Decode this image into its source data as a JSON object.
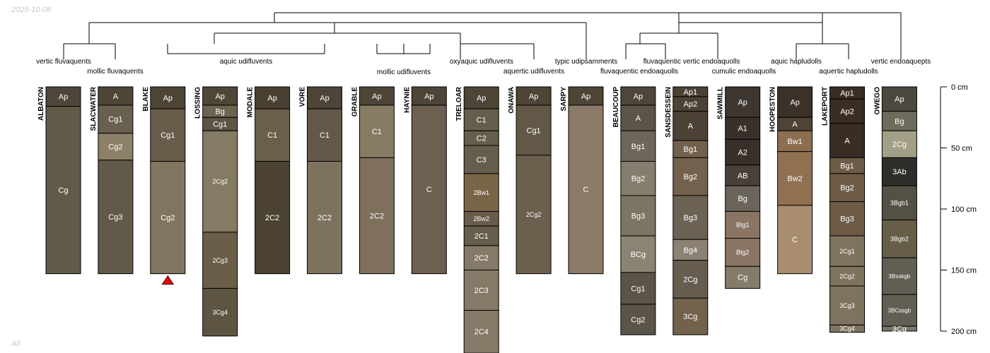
{
  "date": "2025-10-08",
  "footer_note": "All",
  "colors": {
    "horizon_stroke": "#000000",
    "tree_stroke": "#000000",
    "marker_fill": "#ee0000"
  },
  "depth_axis": {
    "unit": "cm",
    "ticks": [
      {
        "depth": 0,
        "label": "0 cm"
      },
      {
        "depth": 50,
        "label": "50 cm"
      },
      {
        "depth": 100,
        "label": "100 cm"
      },
      {
        "depth": 150,
        "label": "150 cm"
      },
      {
        "depth": 200,
        "label": "200 cm"
      }
    ]
  },
  "marker": {
    "profile": "BLAKE",
    "shape": "red-triangle"
  },
  "taxa_labels": [
    {
      "id": "vertic-fluvaquents",
      "text": "vertic fluvaquents"
    },
    {
      "id": "mollic-fluvaquents",
      "text": "mollic fluvaquents"
    },
    {
      "id": "aquic-udifluvents",
      "text": "aquic udifluvents"
    },
    {
      "id": "mollic-udifluvents",
      "text": "mollic udifluvents"
    },
    {
      "id": "oxyaquic-udifluvents",
      "text": "oxyaquic udifluvents"
    },
    {
      "id": "aquertic-udifluvents",
      "text": "aquertic udifluvents"
    },
    {
      "id": "typic-udipsamments",
      "text": "typic udipsamments"
    },
    {
      "id": "fluvaquentic-vertic-endoaquolls",
      "text": "fluvaquentic vertic endoaquolls"
    },
    {
      "id": "fluvaquentic-endoaquolls",
      "text": "fluvaquentic endoaquolls"
    },
    {
      "id": "cumulic-endoaquolls",
      "text": "cumulic endoaquolls"
    },
    {
      "id": "aquic-hapludolls",
      "text": "aquic hapludolls"
    },
    {
      "id": "aquertic-hapludolls",
      "text": "aquertic hapludolls"
    },
    {
      "id": "vertic-endoaquepts",
      "text": "vertic endoaquepts"
    }
  ],
  "profiles": [
    {
      "name": "ALBATON",
      "horizons": [
        {
          "name": "Ap",
          "top": 0,
          "bottom": 16,
          "color": "#4e4638"
        },
        {
          "name": "Cg",
          "top": 16,
          "bottom": 153,
          "color": "#625a48"
        }
      ]
    },
    {
      "name": "SLACWATER",
      "horizons": [
        {
          "name": "A",
          "top": 0,
          "bottom": 15,
          "color": "#4e4536"
        },
        {
          "name": "Cg1",
          "top": 15,
          "bottom": 38,
          "color": "#6a604f"
        },
        {
          "name": "Cg2",
          "top": 38,
          "bottom": 60,
          "color": "#8c8068"
        },
        {
          "name": "Cg3",
          "top": 60,
          "bottom": 153,
          "color": "#625a48"
        }
      ]
    },
    {
      "name": "BLAKE",
      "horizons": [
        {
          "name": "Ap",
          "top": 0,
          "bottom": 18,
          "color": "#4e4435"
        },
        {
          "name": "Cg1",
          "top": 18,
          "bottom": 61,
          "color": "#6a5c4b"
        },
        {
          "name": "Cg2",
          "top": 61,
          "bottom": 153,
          "color": "#827560"
        }
      ]
    },
    {
      "name": "LOSSING",
      "horizons": [
        {
          "name": "Ap",
          "top": 0,
          "bottom": 15,
          "color": "#4e4637"
        },
        {
          "name": "Bg",
          "top": 15,
          "bottom": 25,
          "color": "#6c6350"
        },
        {
          "name": "Cg1",
          "top": 25,
          "bottom": 36,
          "color": "#5c5444"
        },
        {
          "name": "2Cg2",
          "top": 36,
          "bottom": 119,
          "color": "#857a63"
        },
        {
          "name": "2Cg3",
          "top": 119,
          "bottom": 165,
          "color": "#6a5e49"
        },
        {
          "name": "3Cg4",
          "top": 165,
          "bottom": 204,
          "color": "#5e5442"
        }
      ]
    },
    {
      "name": "MODALE",
      "horizons": [
        {
          "name": "Ap",
          "top": 0,
          "bottom": 18,
          "color": "#4a4032"
        },
        {
          "name": "C1",
          "top": 18,
          "bottom": 61,
          "color": "#6c5e4c"
        },
        {
          "name": "2C2",
          "top": 61,
          "bottom": 153,
          "color": "#4c4232"
        }
      ]
    },
    {
      "name": "VORE",
      "horizons": [
        {
          "name": "Ap",
          "top": 0,
          "bottom": 18,
          "color": "#4c4436"
        },
        {
          "name": "C1",
          "top": 18,
          "bottom": 61,
          "color": "#645848"
        },
        {
          "name": "2C2",
          "top": 61,
          "bottom": 153,
          "color": "#7e725e"
        }
      ]
    },
    {
      "name": "GRABLE",
      "horizons": [
        {
          "name": "Ap",
          "top": 0,
          "bottom": 15,
          "color": "#4e4537"
        },
        {
          "name": "C1",
          "top": 15,
          "bottom": 58,
          "color": "#877b63"
        },
        {
          "name": "2C2",
          "top": 58,
          "bottom": 153,
          "color": "#7e705a"
        }
      ]
    },
    {
      "name": "HAYNIE",
      "horizons": [
        {
          "name": "Ap",
          "top": 0,
          "bottom": 15,
          "color": "#4e4537"
        },
        {
          "name": "C",
          "top": 15,
          "bottom": 153,
          "color": "#6e6050"
        }
      ]
    },
    {
      "name": "TRELOAR",
      "horizons": [
        {
          "name": "Ap",
          "top": 0,
          "bottom": 18,
          "color": "#4e4537"
        },
        {
          "name": "C1",
          "top": 18,
          "bottom": 36,
          "color": "#675d4d"
        },
        {
          "name": "C2",
          "top": 36,
          "bottom": 48,
          "color": "#675d4d"
        },
        {
          "name": "C3",
          "top": 48,
          "bottom": 71,
          "color": "#675d4d"
        },
        {
          "name": "2Bw1",
          "top": 71,
          "bottom": 102,
          "color": "#7a6448"
        },
        {
          "name": "2Bw2",
          "top": 102,
          "bottom": 114,
          "color": "#6a5c4a"
        },
        {
          "name": "2C1",
          "top": 114,
          "bottom": 130,
          "color": "#675d4d"
        },
        {
          "name": "2C2",
          "top": 130,
          "bottom": 150,
          "color": "#857a68"
        },
        {
          "name": "2C3",
          "top": 150,
          "bottom": 183,
          "color": "#857a68"
        },
        {
          "name": "2C4",
          "top": 183,
          "bottom": 218,
          "color": "#857a68"
        }
      ]
    },
    {
      "name": "ONAWA",
      "horizons": [
        {
          "name": "Ap",
          "top": 0,
          "bottom": 15,
          "color": "#4e4537"
        },
        {
          "name": "Cg1",
          "top": 15,
          "bottom": 56,
          "color": "#635847"
        },
        {
          "name": "2Cg2",
          "top": 56,
          "bottom": 153,
          "color": "#6d5f4e"
        }
      ]
    },
    {
      "name": "SARPY",
      "horizons": [
        {
          "name": "Ap",
          "top": 0,
          "bottom": 15,
          "color": "#4e4537"
        },
        {
          "name": "C",
          "top": 15,
          "bottom": 153,
          "color": "#8a7a67"
        }
      ]
    },
    {
      "name": "BEAUCOUP",
      "horizons": [
        {
          "name": "Ap",
          "top": 0,
          "bottom": 15,
          "color": "#4d463b"
        },
        {
          "name": "A",
          "top": 15,
          "bottom": 36,
          "color": "#5b5448"
        },
        {
          "name": "Bg1",
          "top": 36,
          "bottom": 61,
          "color": "#6d665a"
        },
        {
          "name": "Bg2",
          "top": 61,
          "bottom": 89,
          "color": "#857d6d"
        },
        {
          "name": "Bg3",
          "top": 89,
          "bottom": 122,
          "color": "#7c7564"
        },
        {
          "name": "BCg",
          "top": 122,
          "bottom": 152,
          "color": "#8a8474"
        },
        {
          "name": "Cg1",
          "top": 152,
          "bottom": 178,
          "color": "#5b5448"
        },
        {
          "name": "Cg2",
          "top": 178,
          "bottom": 203,
          "color": "#5b5448"
        }
      ]
    },
    {
      "name": "SANSDESSEIN",
      "horizons": [
        {
          "name": "Ap1",
          "top": 0,
          "bottom": 8,
          "color": "#4b4235"
        },
        {
          "name": "Ap2",
          "top": 8,
          "bottom": 20,
          "color": "#4b4235"
        },
        {
          "name": "A",
          "top": 20,
          "bottom": 44,
          "color": "#4b4235"
        },
        {
          "name": "Bg1",
          "top": 44,
          "bottom": 58,
          "color": "#72614d"
        },
        {
          "name": "Bg2",
          "top": 58,
          "bottom": 89,
          "color": "#72614d"
        },
        {
          "name": "Bg3",
          "top": 89,
          "bottom": 125,
          "color": "#6c6253"
        },
        {
          "name": "Bg4",
          "top": 125,
          "bottom": 142,
          "color": "#8c8274"
        },
        {
          "name": "2Cg",
          "top": 142,
          "bottom": 173,
          "color": "#665d4f"
        },
        {
          "name": "3Cg",
          "top": 173,
          "bottom": 203,
          "color": "#72624c"
        }
      ]
    },
    {
      "name": "SAWMILL",
      "horizons": [
        {
          "name": "Ap",
          "top": 0,
          "bottom": 25,
          "color": "#3d3631"
        },
        {
          "name": "A1",
          "top": 25,
          "bottom": 43,
          "color": "#38302b"
        },
        {
          "name": "A2",
          "top": 43,
          "bottom": 64,
          "color": "#38302b"
        },
        {
          "name": "AB",
          "top": 64,
          "bottom": 81,
          "color": "#48413a"
        },
        {
          "name": "Bg",
          "top": 81,
          "bottom": 102,
          "color": "#6b645a"
        },
        {
          "name": "Btg1",
          "top": 102,
          "bottom": 124,
          "color": "#8a7464"
        },
        {
          "name": "Btg2",
          "top": 124,
          "bottom": 147,
          "color": "#8a7464"
        },
        {
          "name": "Cg",
          "top": 147,
          "bottom": 165,
          "color": "#857b6a"
        }
      ]
    },
    {
      "name": "HOOPESTON",
      "horizons": [
        {
          "name": "Ap",
          "top": 0,
          "bottom": 25,
          "color": "#3a3128"
        },
        {
          "name": "A",
          "top": 25,
          "bottom": 36,
          "color": "#4e4335"
        },
        {
          "name": "Bw1",
          "top": 36,
          "bottom": 53,
          "color": "#8c6e50"
        },
        {
          "name": "Bw2",
          "top": 53,
          "bottom": 97,
          "color": "#8f7152"
        },
        {
          "name": "C",
          "top": 97,
          "bottom": 153,
          "color": "#a88e6e"
        }
      ]
    },
    {
      "name": "LAKEPORT",
      "horizons": [
        {
          "name": "Ap1",
          "top": 0,
          "bottom": 10,
          "color": "#3a2e24"
        },
        {
          "name": "Ap2",
          "top": 10,
          "bottom": 30,
          "color": "#3a2e24"
        },
        {
          "name": "A",
          "top": 30,
          "bottom": 58,
          "color": "#3a2e24"
        },
        {
          "name": "Bg1",
          "top": 58,
          "bottom": 71,
          "color": "#6e5b45"
        },
        {
          "name": "Bg2",
          "top": 71,
          "bottom": 94,
          "color": "#6e5b45"
        },
        {
          "name": "Bg3",
          "top": 94,
          "bottom": 122,
          "color": "#6e5b45"
        },
        {
          "name": "2Cg1",
          "top": 122,
          "bottom": 147,
          "color": "#7f735f"
        },
        {
          "name": "2Cg2",
          "top": 147,
          "bottom": 163,
          "color": "#7f735f"
        },
        {
          "name": "3Cg3",
          "top": 163,
          "bottom": 195,
          "color": "#7f735f"
        },
        {
          "name": "3Cg4",
          "top": 195,
          "bottom": 201,
          "color": "#7f735f"
        }
      ]
    },
    {
      "name": "OWEGO",
      "horizons": [
        {
          "name": "Ap",
          "top": 0,
          "bottom": 20,
          "color": "#4b493f"
        },
        {
          "name": "Bg",
          "top": 20,
          "bottom": 36,
          "color": "#6e6a5c"
        },
        {
          "name": "2Cg",
          "top": 36,
          "bottom": 58,
          "color": "#a39f86"
        },
        {
          "name": "3Ab",
          "top": 58,
          "bottom": 81,
          "color": "#2f2d28"
        },
        {
          "name": "3Bgb1",
          "top": 81,
          "bottom": 109,
          "color": "#545046"
        },
        {
          "name": "3Bgb2",
          "top": 109,
          "bottom": 140,
          "color": "#665e47"
        },
        {
          "name": "3Bsskgb",
          "top": 140,
          "bottom": 170,
          "color": "#625e54"
        },
        {
          "name": "3BCssgb",
          "top": 170,
          "bottom": 196,
          "color": "#625e54"
        },
        {
          "name": "3Cg",
          "top": 196,
          "bottom": 200,
          "color": "#7a766a"
        }
      ]
    }
  ]
}
